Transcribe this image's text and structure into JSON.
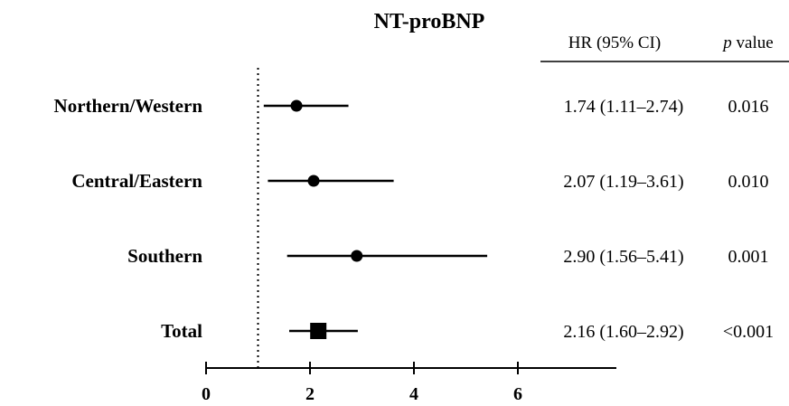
{
  "chart_data": {
    "type": "forest",
    "title": "NT-proBNP",
    "columns": {
      "hr_header": "HR (95% CI)",
      "p_header_italic": "p",
      "p_header_rest": " value"
    },
    "xlim": [
      0,
      8
    ],
    "xticks": [
      0,
      2,
      4,
      6
    ],
    "reference_line": 1,
    "rows": [
      {
        "label": "Northern/Western",
        "hr": 1.74,
        "lower": 1.11,
        "upper": 2.74,
        "hr_text": "1.74 (1.11–2.74)",
        "p_text": "0.016",
        "marker": "circle"
      },
      {
        "label": "Central/Eastern",
        "hr": 2.07,
        "lower": 1.19,
        "upper": 3.61,
        "hr_text": "2.07 (1.19–3.61)",
        "p_text": "0.010",
        "marker": "circle"
      },
      {
        "label": "Southern",
        "hr": 2.9,
        "lower": 1.56,
        "upper": 5.41,
        "hr_text": "2.90 (1.56–5.41)",
        "p_text": "0.001",
        "marker": "circle"
      },
      {
        "label": "Total",
        "hr": 2.16,
        "lower": 1.6,
        "upper": 2.92,
        "hr_text": "2.16 (1.60–2.92)",
        "p_text": "<0.001",
        "marker": "square"
      }
    ]
  }
}
